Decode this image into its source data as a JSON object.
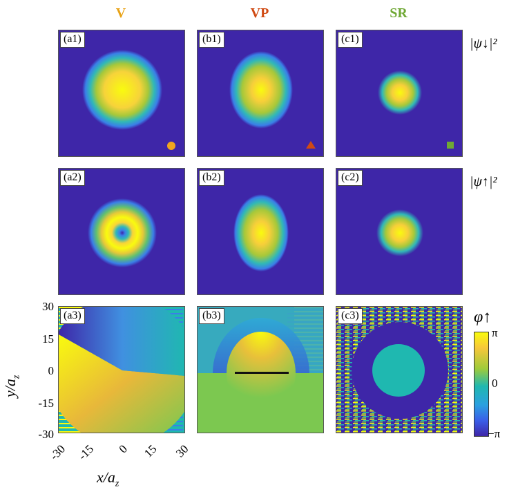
{
  "columns": [
    {
      "title": "V",
      "color": "#e8a317"
    },
    {
      "title": "VP",
      "color": "#d04a13"
    },
    {
      "title": "SR",
      "color": "#6fa834"
    }
  ],
  "panels": {
    "a1": "(a1)",
    "b1": "(b1)",
    "c1": "(c1)",
    "a2": "(a2)",
    "b2": "(b2)",
    "c2": "(c2)",
    "a3": "(a3)",
    "b3": "(b3)",
    "c3": "(c3)"
  },
  "row_labels": {
    "row1": "|ψ↓|²",
    "row2": "|ψ↑|²",
    "row3": "φ↑"
  },
  "y_ticks": [
    "30",
    "15",
    "0",
    "-15",
    "-30"
  ],
  "x_ticks": [
    "-30",
    "-15",
    "0",
    "15",
    "30"
  ],
  "axes": {
    "xlabel": "x/a",
    "xlabel_sub": "z",
    "ylabel": "y/a",
    "ylabel_sub": "z"
  },
  "colorbar": {
    "top": "π",
    "mid": "0",
    "bottom": "−π"
  },
  "markers": [
    "circle",
    "triangle",
    "square"
  ],
  "colors": {
    "bg": "#3e26a8",
    "yellow": "#f9fb0e",
    "teal": "#1fb8b0",
    "green": "#8fca3a"
  },
  "chart_data": {
    "type": "heatmap",
    "title": "",
    "columns": [
      "V",
      "VP",
      "SR"
    ],
    "rows": [
      "|ψ↓|²",
      "|ψ↑|²",
      "φ↑"
    ],
    "x_range": [
      -30,
      30
    ],
    "y_range": [
      -30,
      30
    ],
    "colorbar_range": [
      "-π",
      "π"
    ],
    "xlabel": "x/a_z",
    "ylabel": "y/a_z"
  }
}
